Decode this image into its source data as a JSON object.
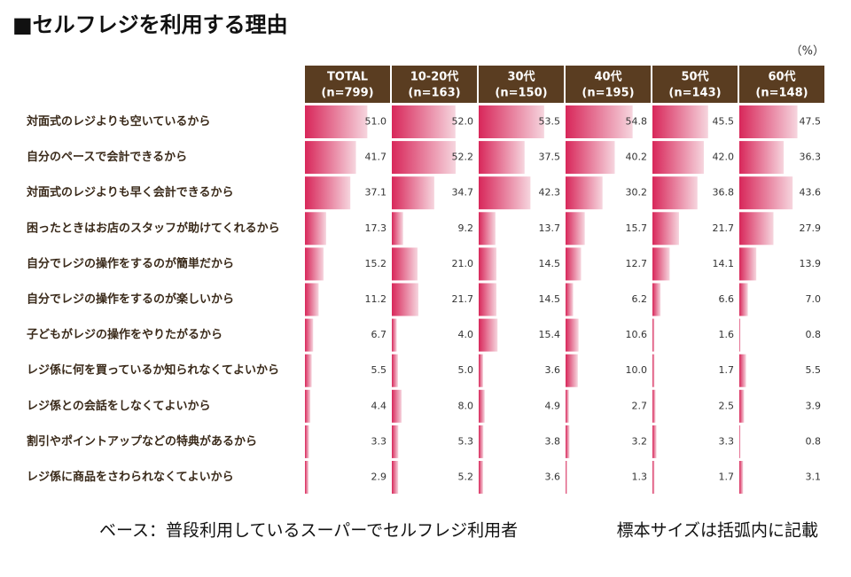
{
  "header": {
    "title": "■セルフレジを利用する理由",
    "unit": "（%）"
  },
  "table": {
    "columns": [
      {
        "name": "TOTAL",
        "n": "(n=799)"
      },
      {
        "name": "10-20代",
        "n": "(n=163)"
      },
      {
        "name": "30代",
        "n": "(n=150)"
      },
      {
        "name": "40代",
        "n": "(n=195)"
      },
      {
        "name": "50代",
        "n": "(n=143)"
      },
      {
        "name": "60代",
        "n": "(n=148)"
      }
    ],
    "rows": [
      {
        "label": "対面式のレジよりも空いているから",
        "values": [
          51.0,
          52.0,
          53.5,
          54.8,
          45.5,
          47.5
        ],
        "value_labels": [
          "51.0",
          "52.0",
          "53.5",
          "54.8",
          "45.5",
          "47.5"
        ]
      },
      {
        "label": "自分のペースで会計できるから",
        "values": [
          41.7,
          52.2,
          37.5,
          40.2,
          42.0,
          36.3
        ],
        "value_labels": [
          "41.7",
          "52.2",
          "37.5",
          "40.2",
          "42.0",
          "36.3"
        ]
      },
      {
        "label": "対面式のレジよりも早く会計できるから",
        "values": [
          37.1,
          34.7,
          42.3,
          30.2,
          36.8,
          43.6
        ],
        "value_labels": [
          "37.1",
          "34.7",
          "42.3",
          "30.2",
          "36.8",
          "43.6"
        ]
      },
      {
        "label": "困ったときはお店のスタッフが助けてくれるから",
        "values": [
          17.3,
          9.2,
          13.7,
          15.7,
          21.7,
          27.9
        ],
        "value_labels": [
          "17.3",
          "9.2",
          "13.7",
          "15.7",
          "21.7",
          "27.9"
        ]
      },
      {
        "label": "自分でレジの操作をするのが簡単だから",
        "values": [
          15.2,
          21.0,
          14.5,
          12.7,
          14.1,
          13.9
        ],
        "value_labels": [
          "15.2",
          "21.0",
          "14.5",
          "12.7",
          "14.1",
          "13.9"
        ]
      },
      {
        "label": "自分でレジの操作をするのが楽しいから",
        "values": [
          11.2,
          21.7,
          14.5,
          6.2,
          6.6,
          7.0
        ],
        "value_labels": [
          "11.2",
          "21.7",
          "14.5",
          "6.2",
          "6.6",
          "7.0"
        ]
      },
      {
        "label": "子どもがレジの操作をやりたがるから",
        "values": [
          6.7,
          4.0,
          15.4,
          10.6,
          1.6,
          0.8
        ],
        "value_labels": [
          "6.7",
          "4.0",
          "15.4",
          "10.6",
          "1.6",
          "0.8"
        ]
      },
      {
        "label": "レジ係に何を買っているか知られなくてよいから",
        "values": [
          5.5,
          5.0,
          3.6,
          10.0,
          1.7,
          5.5
        ],
        "value_labels": [
          "5.5",
          "5.0",
          "3.6",
          "10.0",
          "1.7",
          "5.5"
        ]
      },
      {
        "label": "レジ係との会話をしなくてよいから",
        "values": [
          4.4,
          8.0,
          4.9,
          2.7,
          2.5,
          3.9
        ],
        "value_labels": [
          "4.4",
          "8.0",
          "4.9",
          "2.7",
          "2.5",
          "3.9"
        ]
      },
      {
        "label": "割引やポイントアップなどの特典があるから",
        "values": [
          3.3,
          5.3,
          3.8,
          3.2,
          3.3,
          0.8
        ],
        "value_labels": [
          "3.3",
          "5.3",
          "3.8",
          "3.2",
          "3.3",
          "0.8"
        ]
      },
      {
        "label": "レジ係に商品をさわられなくてよいから",
        "values": [
          2.9,
          5.2,
          3.6,
          1.3,
          1.7,
          3.1
        ],
        "value_labels": [
          "2.9",
          "5.2",
          "3.6",
          "1.3",
          "1.7",
          "3.1"
        ]
      }
    ]
  },
  "footer": {
    "base": "ベース：普段利用しているスーパーでセルフレジ利用者",
    "note": "標本サイズは括弧内に記載"
  }
}
